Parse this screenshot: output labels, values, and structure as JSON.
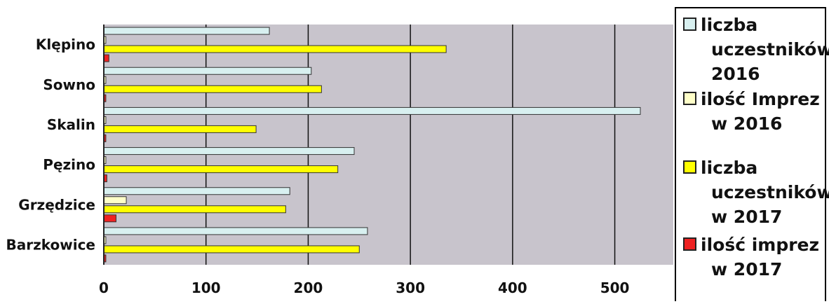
{
  "chart_data": {
    "type": "bar",
    "orientation": "horizontal",
    "categories": [
      "Klępino",
      "Sowno",
      "Skalin",
      "Pęzino",
      "Grzędzice",
      "Barzkowice"
    ],
    "series": [
      {
        "name": "liczba uczestników 2016",
        "color": "#d8f0f0",
        "values": [
          162,
          203,
          525,
          245,
          182,
          258
        ]
      },
      {
        "name": "ilość Imprez w 2016",
        "color": "#ffffc8",
        "values": [
          2,
          2,
          2,
          2,
          22,
          2
        ]
      },
      {
        "name": "liczba uczestników w 2017",
        "color": "#ffff00",
        "values": [
          335,
          213,
          149,
          229,
          178,
          250
        ]
      },
      {
        "name": "ilość imprez w 2017",
        "color": "#ee2222",
        "values": [
          5,
          2,
          2,
          3,
          12,
          2
        ]
      }
    ],
    "xlim": [
      0,
      560
    ],
    "x_ticks": [
      0,
      100,
      200,
      300,
      400,
      500
    ],
    "grid": true,
    "legend_position": "right",
    "plot_background": "#c8c4cc"
  },
  "legend_lines": [
    [
      "liczba",
      "uczestników",
      "2016"
    ],
    [
      "ilość Imprez",
      "w 2016"
    ],
    [
      "liczba",
      "uczestników",
      "w 2017"
    ],
    [
      "ilość imprez",
      "w 2017"
    ]
  ]
}
